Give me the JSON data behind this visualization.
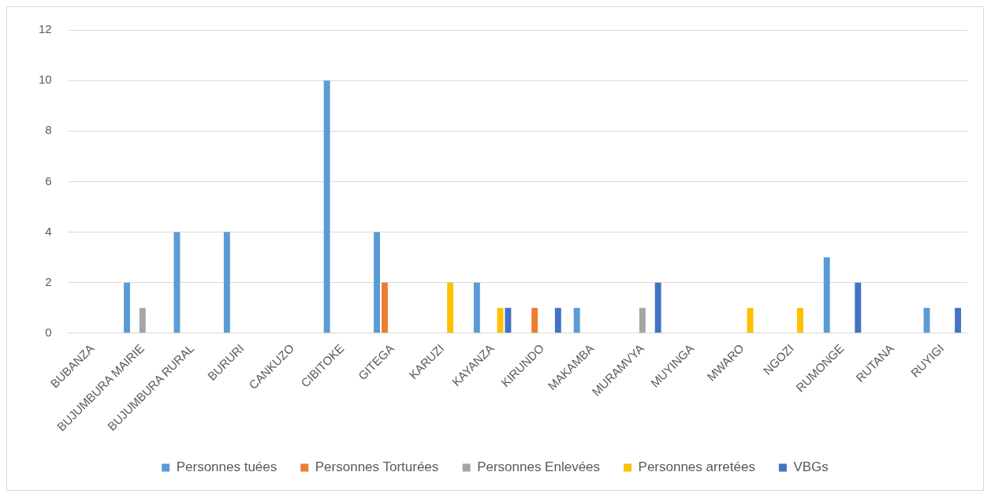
{
  "chart_data": {
    "type": "bar",
    "categories": [
      "BUBANZA",
      "BUJUMBURA MAIRIE",
      "BUJUMBURA RURAL",
      "BURURI",
      "CANKUZO",
      "CIBITOKE",
      "GITEGA",
      "KARUZI",
      "KAYANZA",
      "KIRUNDO",
      "MAKAMBA",
      "MURAMVYA",
      "MUYINGA",
      "MWARO",
      "NGOZI",
      "RUMONGE",
      "RUTANA",
      "RUYIGI"
    ],
    "series": [
      {
        "name": "Personnes tuées",
        "color": "#5b9bd5",
        "values": [
          0,
          2,
          4,
          4,
          0,
          10,
          4,
          0,
          2,
          0,
          1,
          0,
          0,
          0,
          0,
          3,
          0,
          1
        ]
      },
      {
        "name": "Personnes Torturées",
        "color": "#ed7d31",
        "values": [
          0,
          0,
          0,
          0,
          0,
          0,
          2,
          0,
          0,
          1,
          0,
          0,
          0,
          0,
          0,
          0,
          0,
          0
        ]
      },
      {
        "name": "Personnes Enlevées",
        "color": "#a5a5a5",
        "values": [
          0,
          1,
          0,
          0,
          0,
          0,
          0,
          0,
          0,
          0,
          0,
          1,
          0,
          0,
          0,
          0,
          0,
          0
        ]
      },
      {
        "name": "Personnes arretées",
        "color": "#ffc000",
        "values": [
          0,
          0,
          0,
          0,
          0,
          0,
          0,
          2,
          1,
          0,
          0,
          0,
          0,
          1,
          1,
          0,
          0,
          0
        ]
      },
      {
        "name": "VBGs",
        "color": "#4472c4",
        "values": [
          0,
          0,
          0,
          0,
          0,
          0,
          0,
          0,
          1,
          1,
          0,
          2,
          0,
          0,
          0,
          2,
          0,
          1
        ]
      }
    ],
    "ylim": [
      0,
      12
    ],
    "yticks": [
      0,
      2,
      4,
      6,
      8,
      10,
      12
    ],
    "grid": "y",
    "legend": "bottom"
  }
}
